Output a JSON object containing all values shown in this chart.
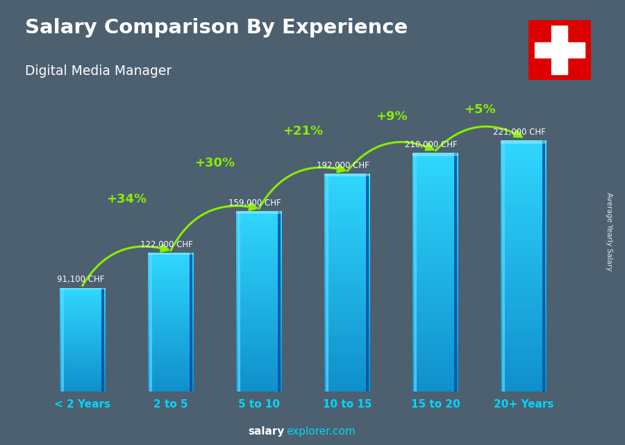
{
  "title": "Salary Comparison By Experience",
  "subtitle": "Digital Media Manager",
  "ylabel": "Average Yearly Salary",
  "categories": [
    "< 2 Years",
    "2 to 5",
    "5 to 10",
    "10 to 15",
    "15 to 20",
    "20+ Years"
  ],
  "values": [
    91100,
    122000,
    159000,
    192000,
    210000,
    221000
  ],
  "value_labels": [
    "91,100 CHF",
    "122,000 CHF",
    "159,000 CHF",
    "192,000 CHF",
    "210,000 CHF",
    "221,000 CHF"
  ],
  "pct_changes": [
    "+34%",
    "+30%",
    "+21%",
    "+9%",
    "+5%"
  ],
  "pct_color": "#88ee00",
  "arrow_color": "#88ee00",
  "xlabel_color": "#00d8ff",
  "value_label_color": "#ffffff",
  "bg_color": "#2a3a4a",
  "footer_salary_color": "#ffffff",
  "footer_explorer_color": "#00d8ff",
  "flag_bg": "#dd0000",
  "flag_cross": "#ffffff",
  "ylim_max": 270000,
  "bar_width": 0.52
}
